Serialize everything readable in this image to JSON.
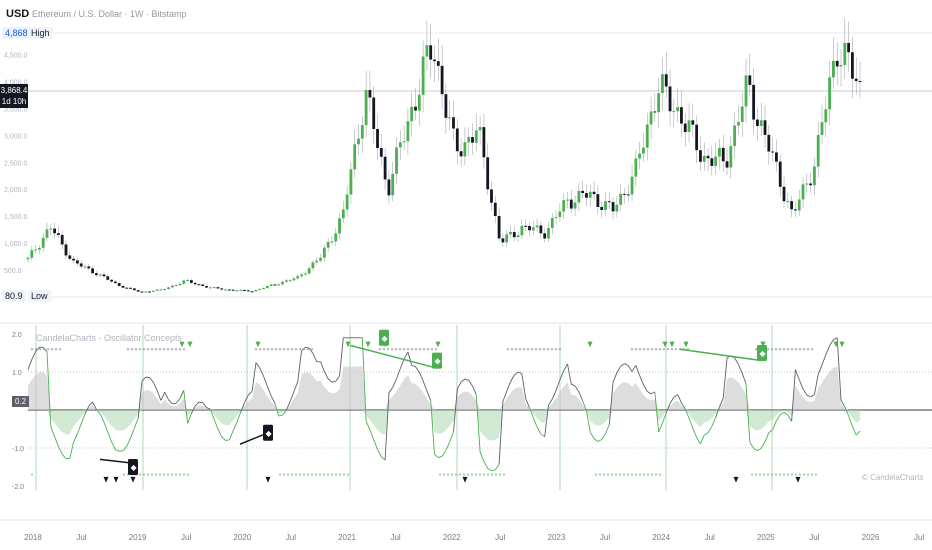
{
  "header": {
    "currency": "USD",
    "symbol_title": "Ethereum / U.S. Dollar · 1W · Bitstamp"
  },
  "price_pane": {
    "high_label": "High",
    "high_value": "4,868.0",
    "low_label": "Low",
    "low_value": "80.9",
    "current_price": "3,868.4",
    "countdown": "1d 10h",
    "y_ticks": [
      "4,500.0",
      "4,000.0",
      "3,500.0",
      "3,000.0",
      "2,500.0",
      "2,000.0",
      "1,500.0",
      "1,000.0",
      "500.0"
    ]
  },
  "oscillator_pane": {
    "title": "CandelaCharts - Oscillator Concepts",
    "current_value": "0.2",
    "y_ticks": [
      "2.0",
      "1.0",
      "-1.0",
      "-2.0"
    ],
    "watermark": "© CandelaCharts"
  },
  "x_axis": {
    "labels": [
      "2018",
      "Jul",
      "2019",
      "Jul",
      "2020",
      "Jul",
      "2021",
      "Jul",
      "2022",
      "Jul",
      "2023",
      "Jul",
      "2024",
      "Jul",
      "2025",
      "Jul",
      "2026",
      "Jul"
    ]
  },
  "colors": {
    "bull": "#4caf50",
    "bear": "#131722",
    "signal_green": "#4caf50",
    "zero_line": "#5d606b"
  },
  "chart_data": {
    "type": "line",
    "title": "Ethereum / U.S. Dollar · 1W · Bitstamp",
    "ylim": [
      0,
      4900
    ],
    "x": [
      "2018-01",
      "2018-02",
      "2018-04",
      "2018-07",
      "2018-09",
      "2018-12",
      "2019-03",
      "2019-06",
      "2019-09",
      "2019-12",
      "2020-03",
      "2020-06",
      "2020-09",
      "2020-12",
      "2021-02",
      "2021-05",
      "2021-07",
      "2021-09",
      "2021-11",
      "2022-01",
      "2022-03",
      "2022-06",
      "2022-09",
      "2022-12",
      "2023-03",
      "2023-06",
      "2023-09",
      "2023-12",
      "2024-03",
      "2024-06",
      "2024-08",
      "2024-10",
      "2024-12",
      "2025-02",
      "2025-04",
      "2025-06",
      "2025-08",
      "2025-10"
    ],
    "series": [
      {
        "values": [
          700,
          1300,
          650,
          450,
          220,
          90,
          140,
          300,
          180,
          130,
          110,
          240,
          360,
          730,
          1500,
          3800,
          2000,
          3400,
          4700,
          2700,
          3100,
          1000,
          1300,
          1200,
          1800,
          1900,
          1600,
          2300,
          3900,
          3400,
          2600,
          2500,
          3900,
          2700,
          1500,
          2500,
          4700,
          3870
        ]
      }
    ]
  }
}
